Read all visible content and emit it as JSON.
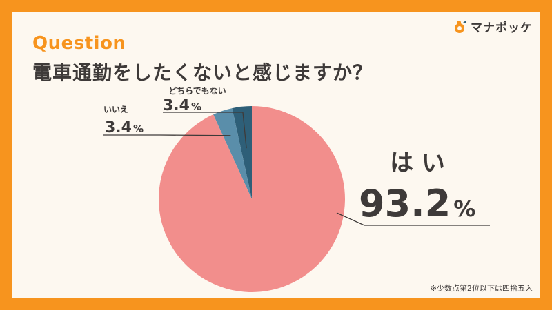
{
  "header": {
    "question_label": "Question",
    "title": "電車通勤をしたくないと感じますか？",
    "logo_text": "マナポッケ"
  },
  "footnote": "※少数点第2位以下は四捨五入",
  "colors": {
    "frame": "#F7941E",
    "yes": "#F28E8C",
    "neutral": "#5A8EAA",
    "no": "#2E5F78"
  },
  "chart_data": {
    "type": "pie",
    "start": "top",
    "direction": "counterclockwise",
    "slices": [
      {
        "label": "どちらでもない",
        "value": 3.4,
        "display": "3.4",
        "color": "#2E5F78"
      },
      {
        "label": "いいえ",
        "value": 3.4,
        "display": "3.4",
        "color": "#5A8EAA"
      },
      {
        "label": "は い",
        "value": 93.2,
        "display": "93.2",
        "color": "#F28E8C"
      }
    ],
    "unit": "%"
  }
}
